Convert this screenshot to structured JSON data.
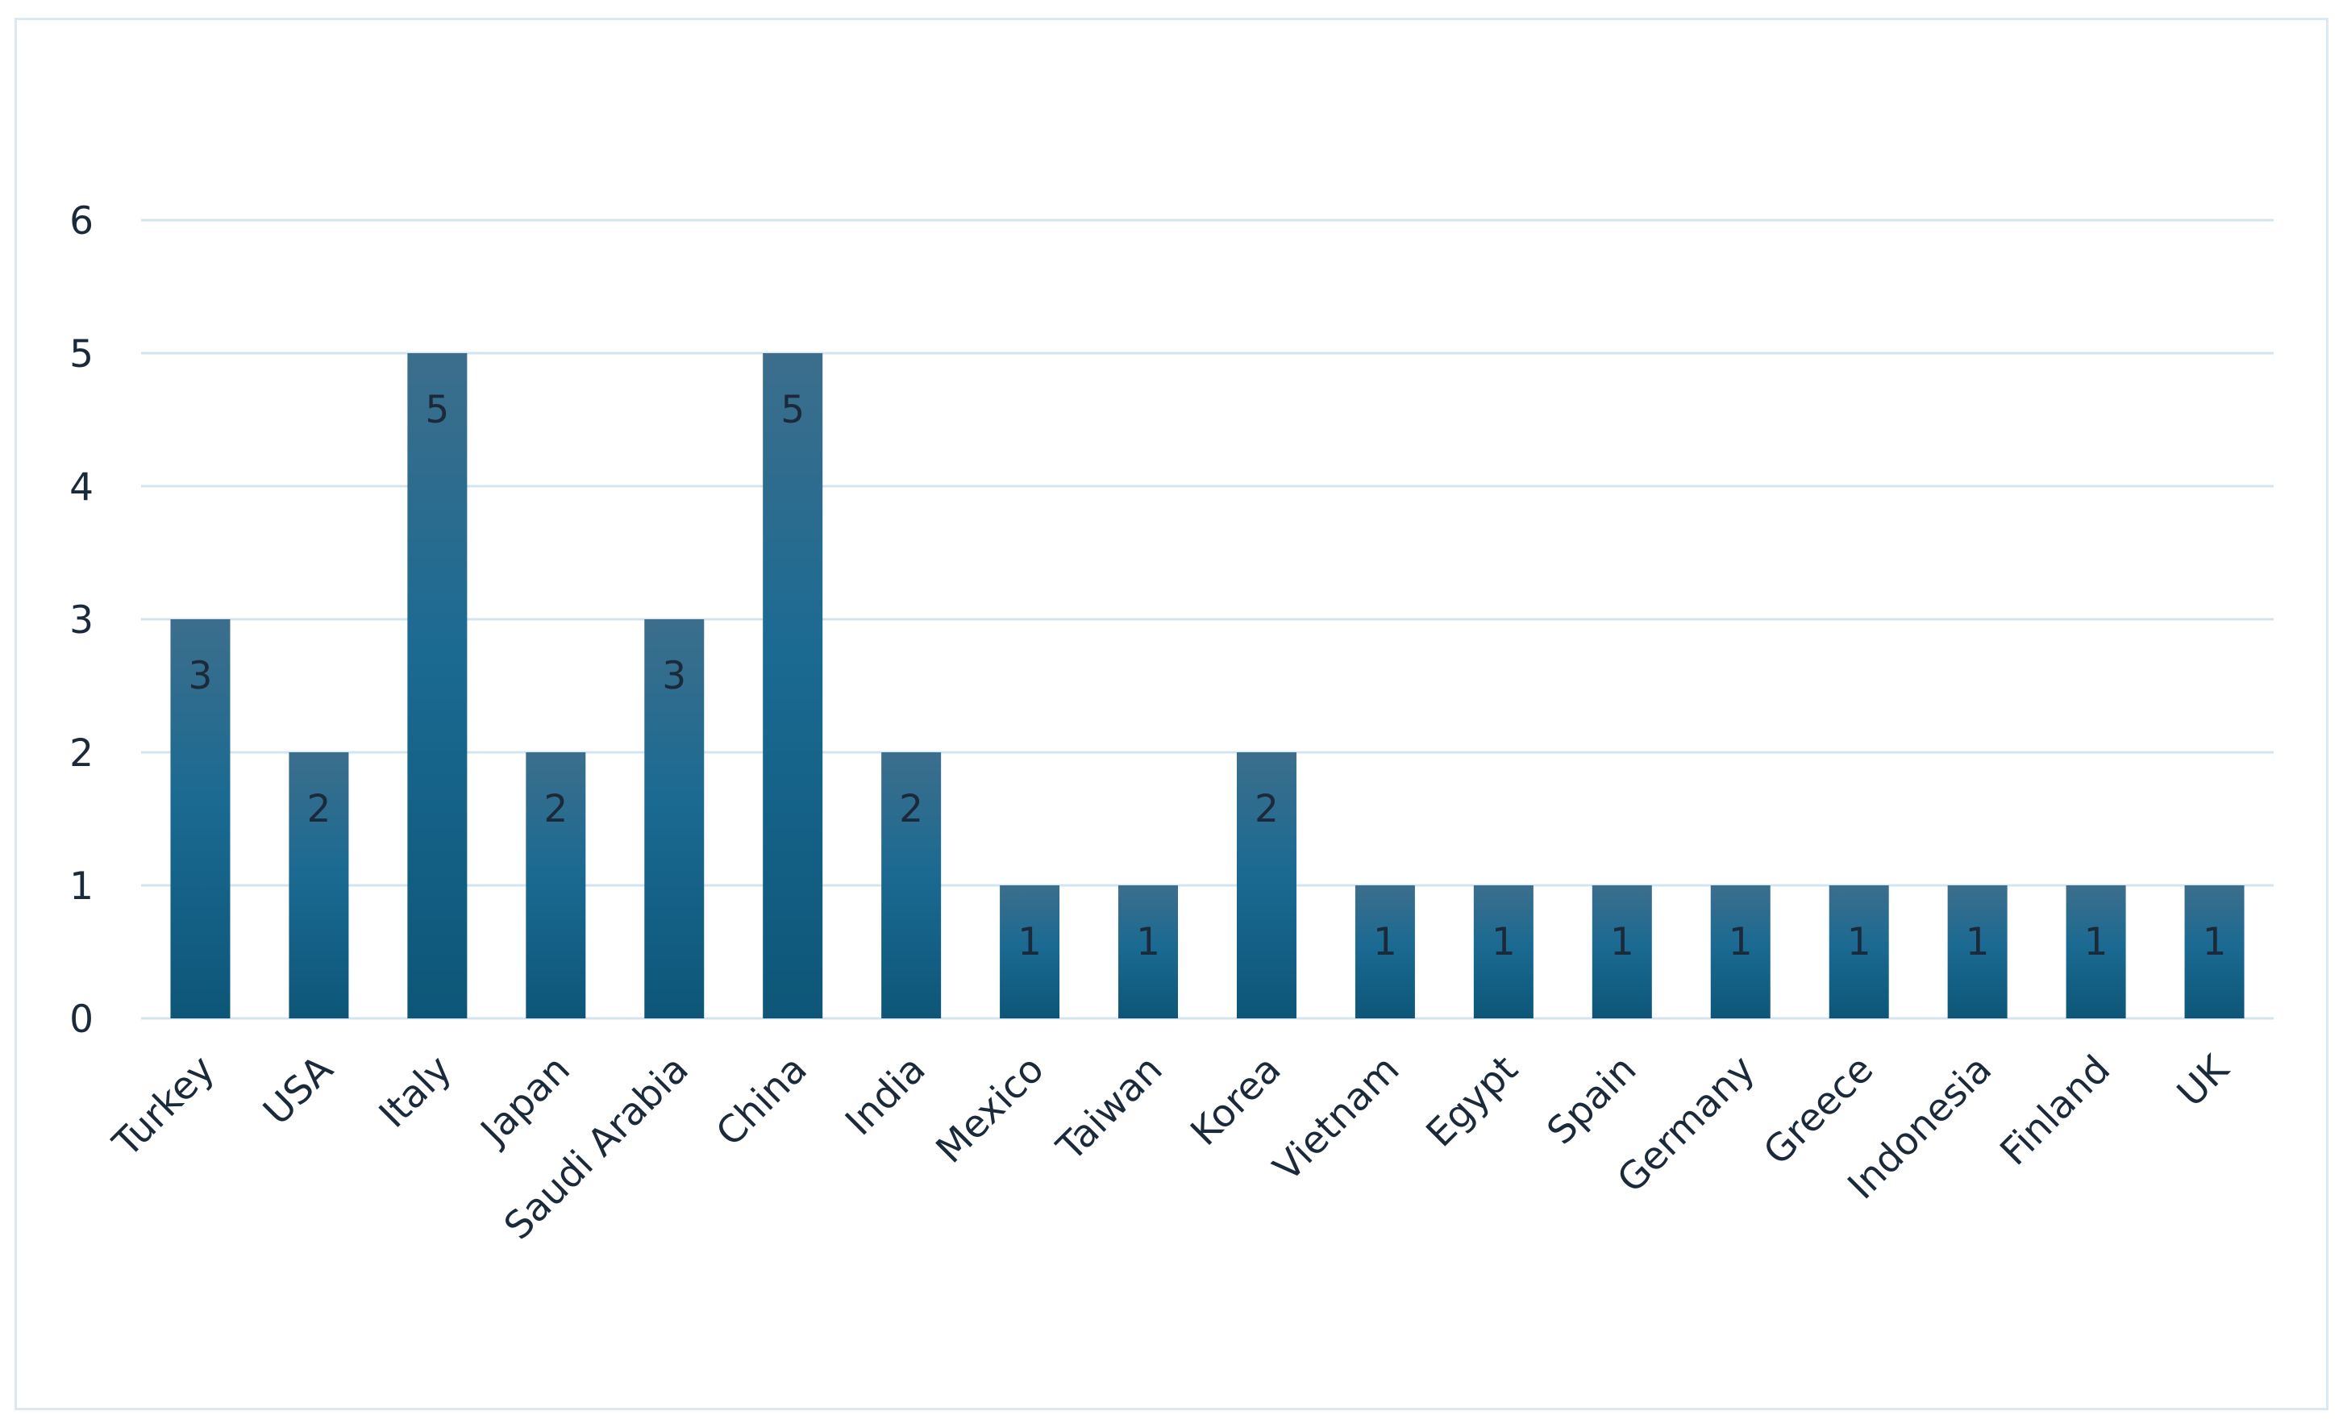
{
  "chart_data": {
    "type": "bar",
    "title": "",
    "xlabel": "",
    "ylabel": "",
    "categories": [
      "Turkey",
      "USA",
      "Italy",
      "Japan",
      "Saudi Arabia",
      "China",
      "India",
      "Mexico",
      "Taiwan",
      "Korea",
      "Vietnam",
      "Egypt",
      "Spain",
      "Germany",
      "Greece",
      "Indonesia",
      "Finland",
      "UK"
    ],
    "values": [
      3,
      2,
      5,
      2,
      3,
      5,
      2,
      1,
      1,
      2,
      1,
      1,
      1,
      1,
      1,
      1,
      1,
      1
    ],
    "ylim": [
      0,
      6
    ],
    "yticks": [
      "0",
      "1",
      "2",
      "3",
      "4",
      "5",
      "6"
    ],
    "grid": true,
    "legend": "none",
    "data_labels": true,
    "colors": {
      "bar_top": "#3c6e8c",
      "bar_mid": "#1b6a92",
      "bar_bottom": "#0d5678",
      "grid": "#d3e4f1",
      "text": "#1b2a3a",
      "frame": "#dbe8f3"
    }
  }
}
